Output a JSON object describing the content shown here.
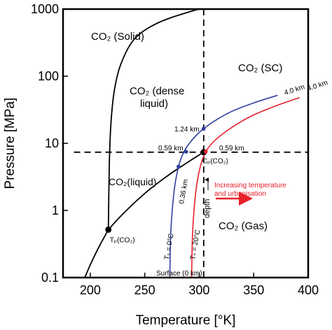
{
  "chart_data": {
    "type": "line",
    "xlabel": "Temperature [°K]",
    "ylabel": "Pressure [MPa]",
    "xlim": [
      175,
      400
    ],
    "ylim": [
      0.1,
      1000
    ],
    "y_scale": "log",
    "x_ticks": [
      200,
      250,
      300,
      350,
      400
    ],
    "y_ticks": [
      {
        "value": 0.1,
        "label": "0.1"
      },
      {
        "value": 1,
        "label": "1"
      },
      {
        "value": 10,
        "label": "10"
      },
      {
        "value": 100,
        "label": "100"
      },
      {
        "value": 1000,
        "label": "1000"
      }
    ],
    "grid": false,
    "regions": {
      "solid": "CO₂ (Solid)",
      "sc": "CO₂ (SC)",
      "dense_line1": "CO₂ (dense",
      "dense_line2": "liquid)",
      "liquid": "CO₂(liquid)",
      "gas": "CO₂ (Gas)"
    },
    "points": {
      "triple": {
        "label": "Tₚ(CO₂)",
        "x": 216.6,
        "y": 0.518
      },
      "critical": {
        "label": "Cₚ(CO₂)",
        "x": 304.1,
        "y": 7.38
      }
    },
    "series": [
      {
        "role": "sublimation",
        "color": "#000000",
        "x": [
          195,
          200,
          205,
          210,
          216.6
        ],
        "y": [
          0.1,
          0.155,
          0.23,
          0.33,
          0.518
        ]
      },
      {
        "role": "vaporization",
        "color": "#000000",
        "x": [
          216.6,
          230,
          250,
          270,
          290,
          304.1
        ],
        "y": [
          0.518,
          0.89,
          1.79,
          3.2,
          5.3,
          7.38
        ]
      },
      {
        "role": "melting",
        "color": "#000000",
        "x": [
          216.6,
          217.5,
          219,
          222,
          228,
          240,
          260,
          290,
          320,
          350
        ],
        "y": [
          0.518,
          5,
          20,
          60,
          150,
          350,
          600,
          900,
          1200,
          1500
        ]
      },
      {
        "role": "geotherm-0C",
        "color": "#3040a0",
        "x": [
          273,
          274,
          277,
          281,
          286,
          292,
          298,
          304,
          315,
          330,
          350,
          372
        ],
        "y": [
          0.1,
          0.5,
          2,
          4.5,
          7.5,
          10.5,
          13.5,
          16.5,
          22,
          30,
          40,
          52
        ]
      },
      {
        "role": "geotherm-20C",
        "color": "#e8202a",
        "x": [
          293,
          294,
          297,
          301,
          306,
          313,
          322,
          335,
          350,
          370,
          392
        ],
        "y": [
          0.1,
          0.5,
          2,
          4.5,
          7.5,
          10.5,
          14,
          19.5,
          26.5,
          36,
          48
        ]
      }
    ],
    "dashed_lines": {
      "critical_temperature": 304.1,
      "critical_pressure": 7.38
    },
    "annotations": {
      "label_1_24km": "1.24 km",
      "label_059km_left": "0.59 km",
      "label_059km_right": "0.59 km",
      "label_036km": "0.36 km",
      "label_40km_blue": "4.0 km",
      "label_40km_red": "4.0 km",
      "surface": "Surface (0 km)",
      "ts_0": "Tₛ = 0°C",
      "ts_20": "Tₛ = 20°C",
      "depth": "depth",
      "trend_line1": "Increasing temperature",
      "trend_line2": "and urbanisation"
    },
    "colors": {
      "axes": "#000000",
      "blue": "#3040a0",
      "red": "#e8202a",
      "points": "#000000"
    }
  }
}
